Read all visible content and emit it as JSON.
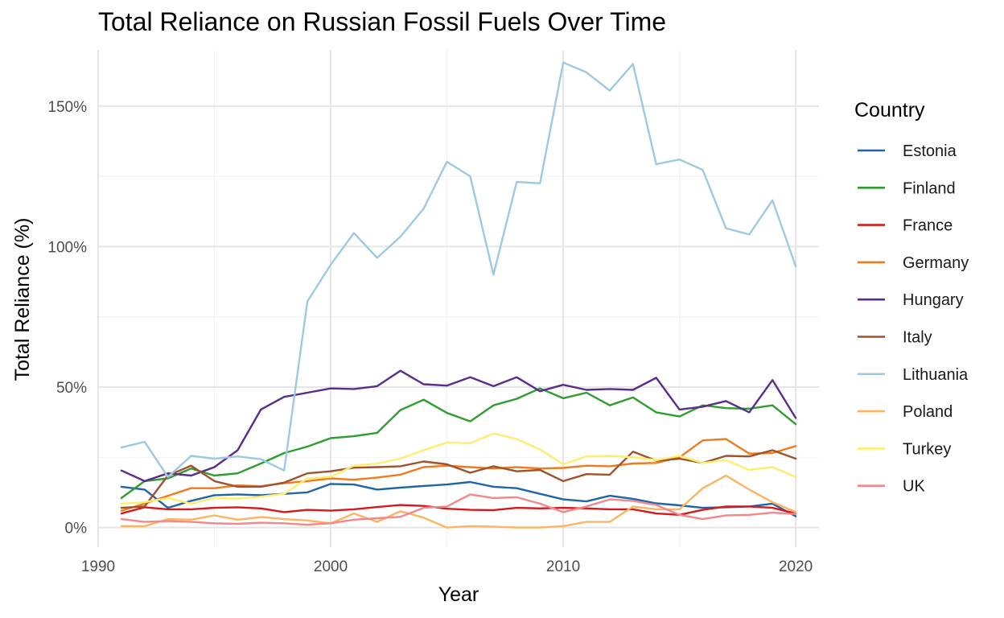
{
  "chart_data": {
    "type": "line",
    "title": "Total Reliance on Russian Fossil Fuels Over Time",
    "xlabel": "Year",
    "ylabel": "Total Reliance (%)",
    "xlim": [
      1990,
      2021
    ],
    "ylim": [
      -7,
      170
    ],
    "x_ticks": [
      1990,
      2000,
      2010,
      2020
    ],
    "y_ticks": [
      0,
      50,
      100,
      150
    ],
    "y_tick_labels": [
      "0%",
      "50%",
      "100%",
      "150%"
    ],
    "grid": true,
    "legend": {
      "title": "Country",
      "position": "right"
    },
    "x": [
      1991,
      1992,
      1993,
      1994,
      1995,
      1996,
      1997,
      1998,
      1999,
      2000,
      2001,
      2002,
      2003,
      2004,
      2005,
      2006,
      2007,
      2008,
      2009,
      2010,
      2011,
      2012,
      2013,
      2014,
      2015,
      2016,
      2017,
      2018,
      2019,
      2020
    ],
    "series": [
      {
        "name": "Estonia",
        "color": "#1f65a8",
        "values": [
          14.5,
          13.5,
          7.0,
          9.5,
          11.5,
          11.8,
          11.5,
          12.0,
          12.5,
          15.5,
          15.3,
          13.5,
          14.2,
          14.8,
          15.3,
          16.2,
          14.5,
          14.0,
          12.0,
          10.0,
          9.3,
          11.3,
          10.2,
          8.6,
          7.9,
          7.0,
          7.2,
          7.5,
          8.5,
          4.0
        ]
      },
      {
        "name": "Finland",
        "color": "#2e9e2e",
        "values": [
          10.5,
          16.5,
          17.5,
          21.0,
          18.5,
          19.3,
          22.8,
          26.5,
          28.8,
          31.8,
          32.5,
          33.7,
          41.8,
          45.5,
          40.8,
          37.8,
          43.5,
          45.8,
          49.5,
          46.0,
          48.0,
          43.5,
          46.3,
          41.0,
          39.5,
          43.5,
          42.5,
          42.3,
          43.5,
          36.8
        ]
      },
      {
        "name": "France",
        "color": "#d7191c",
        "values": [
          5.0,
          7.2,
          6.5,
          6.5,
          7.0,
          7.2,
          6.8,
          5.5,
          6.3,
          6.0,
          6.5,
          7.3,
          8.0,
          7.7,
          6.7,
          6.3,
          6.2,
          7.0,
          6.8,
          7.0,
          6.8,
          6.5,
          6.5,
          5.0,
          4.5,
          6.3,
          7.5,
          7.5,
          7.0,
          5.0
        ]
      },
      {
        "name": "Germany",
        "color": "#f07b1e",
        "values": [
          6.0,
          8.5,
          11.3,
          14.0,
          14.0,
          15.0,
          14.7,
          15.8,
          16.5,
          17.5,
          17.0,
          17.8,
          18.8,
          21.5,
          22.0,
          21.5,
          21.0,
          21.5,
          21.0,
          21.2,
          22.0,
          21.8,
          22.8,
          23.0,
          25.0,
          31.0,
          31.5,
          26.3,
          26.5,
          29.0
        ]
      },
      {
        "name": "Hungary",
        "color": "#5a2d8c",
        "values": [
          20.3,
          16.5,
          19.3,
          18.5,
          21.5,
          27.5,
          42.0,
          46.5,
          48.0,
          49.5,
          49.3,
          50.3,
          55.8,
          51.0,
          50.5,
          53.5,
          50.3,
          53.5,
          48.5,
          50.8,
          49.0,
          49.3,
          49.0,
          53.3,
          42.0,
          43.0,
          45.0,
          41.0,
          52.5,
          39.0
        ]
      },
      {
        "name": "Italy",
        "color": "#a0522d",
        "values": [
          7.0,
          7.5,
          18.5,
          22.0,
          16.5,
          14.5,
          14.5,
          16.0,
          19.3,
          20.0,
          21.3,
          21.5,
          21.8,
          23.5,
          22.5,
          19.5,
          21.8,
          20.0,
          20.5,
          16.5,
          19.0,
          18.8,
          27.0,
          23.8,
          24.5,
          23.0,
          25.5,
          25.3,
          27.5,
          24.5
        ]
      },
      {
        "name": "Lithuania",
        "color": "#9ecae1",
        "values": [
          28.5,
          30.5,
          18.0,
          25.5,
          24.5,
          25.3,
          24.3,
          20.3,
          80.5,
          93.5,
          104.8,
          96.0,
          103.5,
          113.5,
          130.2,
          125.0,
          90.0,
          123.0,
          122.5,
          165.5,
          162.0,
          155.5,
          165.0,
          129.3,
          131.0,
          127.3,
          106.5,
          104.3,
          116.5,
          93.0
        ]
      },
      {
        "name": "Poland",
        "color": "#fdb462",
        "values": [
          0.5,
          0.5,
          3.0,
          2.8,
          4.3,
          2.8,
          3.7,
          3.0,
          2.5,
          1.5,
          5.0,
          2.0,
          5.8,
          3.5,
          0.0,
          0.5,
          0.3,
          0.0,
          0.0,
          0.5,
          2.0,
          2.0,
          7.5,
          6.5,
          6.5,
          14.0,
          18.5,
          13.5,
          9.0,
          5.5
        ]
      },
      {
        "name": "Turkey",
        "color": "#ffed6f",
        "values": [
          8.5,
          9.0,
          10.5,
          8.5,
          10.5,
          10.3,
          11.0,
          12.0,
          17.5,
          18.0,
          22.0,
          22.8,
          24.5,
          27.5,
          30.3,
          30.0,
          33.5,
          31.5,
          27.8,
          22.5,
          25.3,
          25.5,
          25.0,
          24.0,
          25.5,
          23.0,
          24.0,
          20.5,
          21.5,
          18.0
        ]
      },
      {
        "name": "UK",
        "color": "#f4878a",
        "values": [
          3.0,
          2.0,
          2.3,
          2.0,
          1.5,
          1.3,
          1.7,
          1.5,
          1.0,
          1.5,
          2.8,
          3.3,
          3.8,
          7.0,
          7.5,
          11.8,
          10.5,
          10.8,
          8.5,
          5.5,
          7.5,
          10.0,
          9.5,
          8.0,
          4.5,
          3.0,
          4.3,
          4.5,
          5.3,
          4.8
        ]
      }
    ]
  }
}
